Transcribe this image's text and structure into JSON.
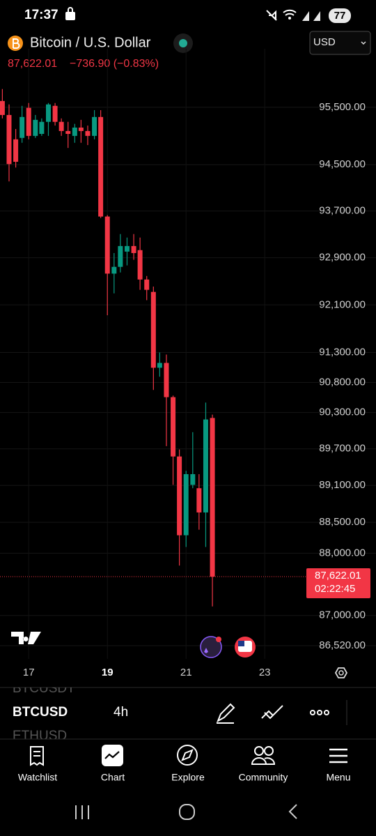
{
  "status_bar": {
    "time": "17:37",
    "battery": "77"
  },
  "header": {
    "symbol": "Bitcoin / U.S. Dollar",
    "currency": "USD",
    "price": "87,622.01",
    "change": "−736.90 (−0.83%)"
  },
  "chart_data": {
    "type": "candlestick",
    "x": [
      16.33,
      16.5,
      16.67,
      16.83,
      17,
      17.17,
      17.33,
      17.5,
      17.67,
      17.83,
      18,
      18.17,
      18.33,
      18.5,
      18.67,
      18.83,
      19,
      19.17,
      19.33,
      19.5,
      19.67,
      19.83,
      20,
      20.17,
      20.33,
      20.5,
      20.67,
      20.83,
      21,
      21.17,
      21.33,
      21.5,
      21.67
    ],
    "open": [
      95610,
      95365,
      94940,
      94965,
      95490,
      95000,
      95035,
      95245,
      95525,
      95245,
      95085,
      95000,
      95145,
      95085,
      95000,
      95330,
      93605,
      92630,
      92745,
      93005,
      93100,
      93030,
      92530,
      92320,
      91045,
      91125,
      90555,
      89575,
      88290,
      89110,
      89055,
      88660,
      90210
    ],
    "high": [
      95820,
      95550,
      95120,
      95525,
      95575,
      95365,
      95305,
      95575,
      95575,
      95305,
      95245,
      95210,
      95280,
      95180,
      95450,
      95450,
      93630,
      92980,
      93305,
      93245,
      93305,
      93245,
      92590,
      92410,
      91300,
      91265,
      90580,
      89690,
      89340,
      89975,
      89285,
      90465,
      90265
    ],
    "low": [
      95305,
      94210,
      94450,
      94880,
      94940,
      94965,
      95000,
      95000,
      95180,
      95000,
      94790,
      94880,
      94880,
      94840,
      94940,
      93580,
      91925,
      92295,
      92650,
      92770,
      92865,
      92355,
      92180,
      90675,
      90895,
      89745,
      89110,
      87800,
      88100,
      89055,
      88380,
      88100,
      87145
    ],
    "close": [
      95365,
      94510,
      94550,
      95330,
      95000,
      95280,
      95245,
      95550,
      95245,
      95085,
      95035,
      95145,
      95085,
      95000,
      95330,
      93605,
      92630,
      92745,
      93100,
      93100,
      92980,
      92530,
      92355,
      91045,
      91125,
      90555,
      89575,
      88290,
      89285,
      89285,
      88660,
      90185,
      87622.01
    ],
    "up_color": "#089981",
    "down_color": "#f23645",
    "xlim": [
      16.27,
      23.97
    ],
    "xticks": [
      17,
      19,
      21,
      23
    ],
    "ylim": [
      86310,
      96160
    ],
    "log": true,
    "grid": true,
    "yticks": [
      {
        "value": 95500,
        "label": "95,500.00"
      },
      {
        "value": 94500,
        "label": "94,500.00"
      },
      {
        "value": 93700,
        "label": "93,700.00"
      },
      {
        "value": 92900,
        "label": "92,900.00"
      },
      {
        "value": 92100,
        "label": "92,100.00"
      },
      {
        "value": 91300,
        "label": "91,300.00"
      },
      {
        "value": 90800,
        "label": "90,800.00"
      },
      {
        "value": 90300,
        "label": "90,300.00"
      },
      {
        "value": 89700,
        "label": "89,700.00"
      },
      {
        "value": 89100,
        "label": "89,100.00"
      },
      {
        "value": 88500,
        "label": "88,500.00"
      },
      {
        "value": 88000,
        "label": "88,000.00"
      },
      {
        "value": 87000,
        "label": "87,000.00"
      },
      {
        "value": 86520,
        "label": "86,520.00"
      }
    ],
    "price_tag": {
      "value": 87622.01,
      "label": "87,622.01",
      "countdown": "02:22:45"
    }
  },
  "toolbar": {
    "symbols": [
      "BTCUSDT",
      "BTCUSD",
      "ETHUSD"
    ],
    "interval": "4h"
  },
  "nav": [
    "Watchlist",
    "Chart",
    "Explore",
    "Community",
    "Menu"
  ]
}
